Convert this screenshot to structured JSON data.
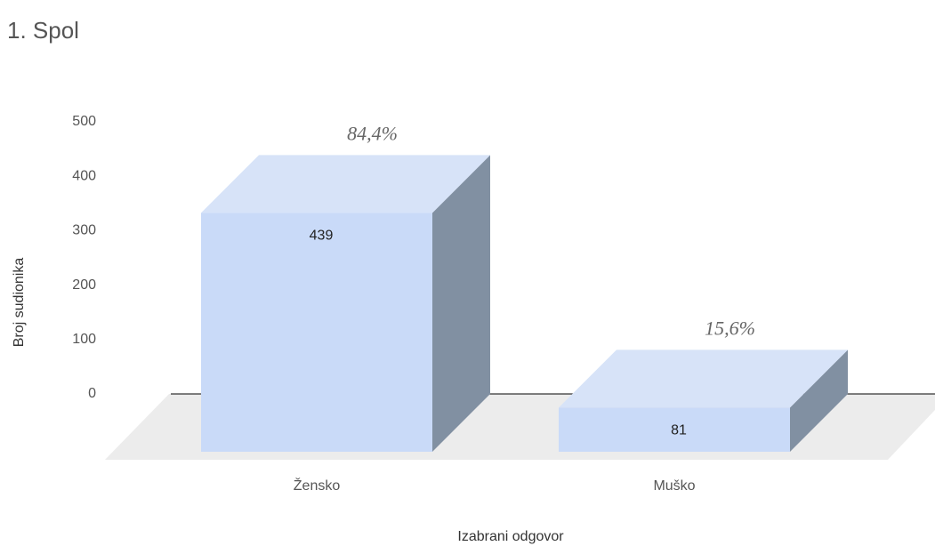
{
  "chart_data": {
    "type": "bar3d",
    "title": "1. Spol",
    "categories": [
      "Žensko",
      "Muško"
    ],
    "values": [
      439,
      81
    ],
    "percent_labels": [
      "84,4%",
      "15,6%"
    ],
    "x_label": "Izabrani odgovor",
    "y_label": "Broj sudionika",
    "ylim": [
      0,
      500
    ],
    "yticks": [
      0,
      100,
      200,
      300,
      400,
      500
    ],
    "color": "#c9daf8"
  }
}
